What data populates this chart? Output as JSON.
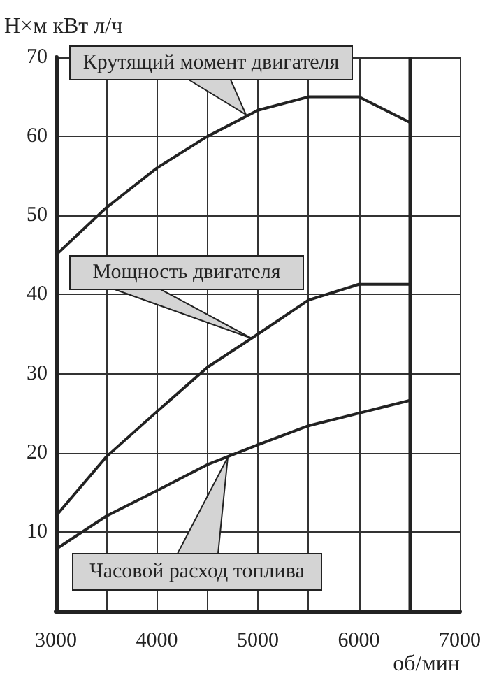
{
  "chart_data": {
    "type": "line",
    "ylabel": "Н×м кВт л/ч",
    "xlabel": "об/мин",
    "x": [
      3000,
      3500,
      4000,
      4500,
      5000,
      5500,
      6000,
      6500
    ],
    "series": [
      {
        "color": "#222222",
        "values": [
          45,
          51,
          56,
          60,
          63.3,
          65,
          65,
          61.8
        ]
      },
      {
        "color": "#222222",
        "values": [
          12,
          19.5,
          25.2,
          30.8,
          35,
          39.3,
          41.3,
          41.3
        ]
      },
      {
        "color": "#222222",
        "values": [
          7.8,
          12,
          15.2,
          18.5,
          21,
          23.4,
          25,
          26.6
        ]
      }
    ],
    "annotations": [
      "Крутящий момент двигателя",
      "Мощность двигателя",
      "Часовой расход топлива"
    ],
    "ref_lines": [
      {
        "axis": "x",
        "value": 6500,
        "color": "#222222"
      }
    ],
    "xlim": [
      3000,
      7000
    ],
    "xticks": [
      3000,
      {
        "value": 3500,
        "label": null
      },
      4000,
      {
        "value": 4500,
        "label": null
      },
      5000,
      {
        "value": 5500,
        "label": null
      },
      6000,
      {
        "value": 6500,
        "label": null
      },
      7000
    ],
    "ylim": [
      0,
      70
    ],
    "yticks": [
      {
        "value": 0,
        "label": null
      },
      10,
      20,
      30,
      40,
      50,
      60,
      70
    ],
    "grid": true,
    "marker": "none",
    "line_style": "solid"
  }
}
